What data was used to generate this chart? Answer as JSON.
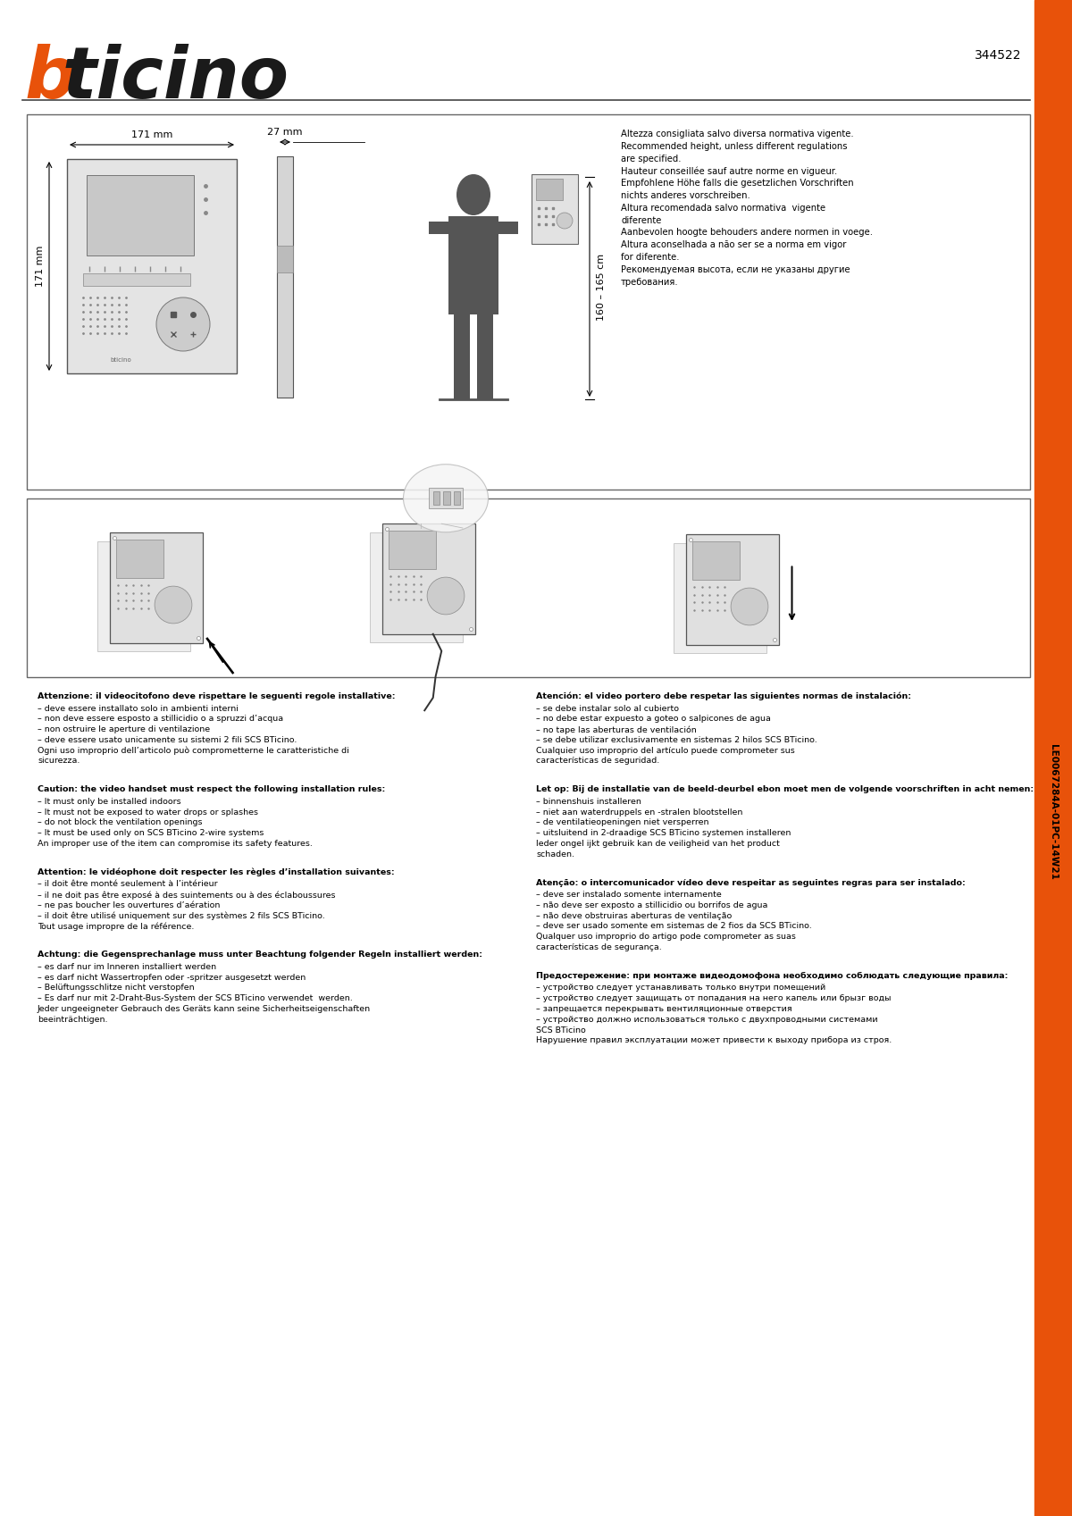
{
  "bg_color": "#ffffff",
  "orange_color": "#e8520a",
  "black_color": "#1a1a1a",
  "sidebar_color": "#e8520a",
  "sidebar_text": "LE0067284A-01PC-14W21",
  "code_text": "344522",
  "logo_b": "b",
  "logo_rest": "ticino",
  "dim_width": "171 mm",
  "dim_depth": "27 mm",
  "dim_height": "171 mm",
  "dim_height_range": "160 – 165 cm",
  "multilang_lines": [
    "Altezza consigliata salvo diversa normativa vigente.",
    "Recommended height, unless different regulations",
    "are specified.",
    "Hauteur conseillée sauf autre norme en vigueur.",
    "Empfohlene Höhe falls die gesetzlichen Vorschriften",
    "nichts anderes vorschreiben.",
    "Altura recomendada salvo normativa  vigente",
    "diferente",
    "Aanbevolen hoogte behouders andere normen in voege.",
    "Altura aconselhada a não ser se a norma em vigor",
    "for diferente.",
    "Рекомендуемая высота, если не указаны другие",
    "требования."
  ],
  "it_title": "Attenzione: il videocitofono deve rispettare le seguenti regole installative:",
  "it_lines": [
    "– deve essere installato solo in ambienti interni",
    "– non deve essere esposto a stillicidio o a spruzzi d’acqua",
    "– non ostruire le aperture di ventilazione",
    "– deve essere usato unicamente su sistemi 2 fili SCS BTicino.",
    "Ogni uso improprio dell’articolo può comprometterne le caratteristiche di",
    "sicurezza."
  ],
  "en_title": "Caution: the video handset must respect the following installation rules:",
  "en_lines": [
    "– It must only be installed indoors",
    "– It must not be exposed to water drops or splashes",
    "– do not block the ventilation openings",
    "– It must be used only on SCS BTicino 2-wire systems",
    "An improper use of the item can compromise its safety features."
  ],
  "fr_title": "Attention: le vidéophone doit respecter les règles d’installation suivantes:",
  "fr_lines": [
    "– il doit être monté seulement à l’intérieur",
    "– il ne doit pas être exposé à des suintements ou à des éclaboussures",
    "– ne pas boucher les ouvertures d’aération",
    "– il doit être utilisé uniquement sur des systèmes 2 fils SCS BTicino.",
    "Tout usage impropre de la référence."
  ],
  "de_title": "Achtung: die Gegensprechanlage muss unter Beachtung folgender Regeln installiert werden:",
  "de_lines": [
    "– es darf nur im Inneren installiert werden",
    "– es darf nicht Wassertropfen oder -spritzer ausgesetzt werden",
    "– Belüftungsschlitze nicht verstopfen",
    "– Es darf nur mit 2-Draht-Bus-System der SCS BTicino verwendet  werden.",
    "Jeder ungeeigneter Gebrauch des Geräts kann seine Sicherheitseigenschaften",
    "beeinträchtigen."
  ],
  "es_title": "Atención: el video portero debe respetar las siguientes normas de instalación:",
  "es_lines": [
    "– se debe instalar solo al cubierto",
    "– no debe estar expuesto a goteo o salpicones de agua",
    "– no tape las aberturas de ventilación",
    "– se debe utilizar exclusivamente en sistemas 2 hilos SCS BTicino.",
    "Cualquier uso improprio del artículo puede comprometer sus",
    "características de seguridad."
  ],
  "nl_title": "Let op: Bij de installatie van de beeld-deurbel ebon moet men de volgende voorschriften in acht nemen:",
  "nl_lines": [
    "– binnenshuis installeren",
    "– niet aan waterdruppels en -stralen blootstellen",
    "– de ventilatieopeningen niet versperren",
    "– uitsluitend in 2-draadige SCS BTicino systemen installeren",
    "Ieder ongel ijkt gebruik kan de veiligheid van het product",
    "schaden."
  ],
  "pt_title": "Atenção: o intercomunicador vídeo deve respeitar as seguintes regras para ser instalado:",
  "pt_lines": [
    "– deve ser instalado somente internamente",
    "– não deve ser exposto a stillicidio ou borrifos de agua",
    "– não deve obstruiras aberturas de ventilação",
    "– deve ser usado somente em sistemas de 2 fios da SCS BTicino.",
    "Qualquer uso improprio do artigo pode comprometer as suas",
    "características de segurança."
  ],
  "ru_title": "Предостережение: при монтаже видеодомофона необходимо соблюдать следующие правила:",
  "ru_lines": [
    "– устройство следует устанавливать только внутри помещений",
    "– устройство следует защищать от попадания на него капель или брызг воды",
    "– запрещается перекрывать вентиляционные отверстия",
    "– устройство должно использоваться только с двухпроводными системами",
    "SCS BTicino",
    "Нарушение правил эксплуатации может привести к выходу прибора из строя."
  ]
}
